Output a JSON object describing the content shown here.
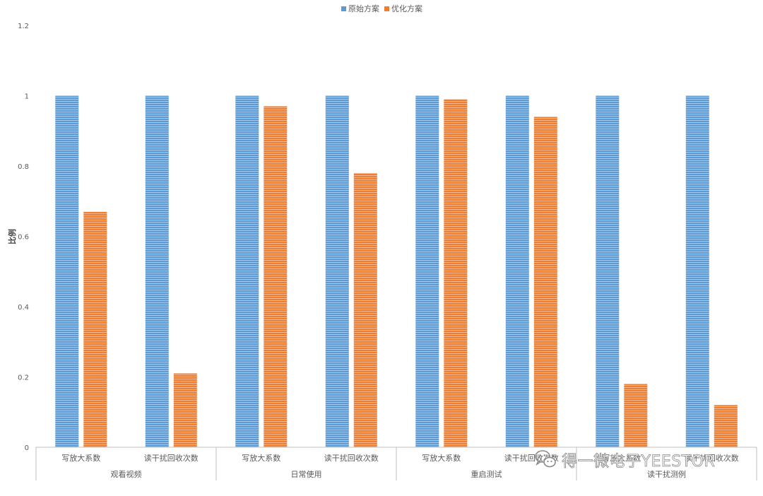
{
  "chart_data": {
    "type": "bar",
    "title": "",
    "xlabel": "",
    "ylabel": "比例",
    "ylim": [
      0,
      1.2
    ],
    "yticks": [
      "0",
      "0.2",
      "0.4",
      "0.6",
      "0.8",
      "1",
      "1.2"
    ],
    "grid": false,
    "legend_position": "top-center",
    "groups": [
      {
        "name": "观看视频",
        "categories": [
          "写放大系数",
          "读干扰回收次数"
        ]
      },
      {
        "name": "日常使用",
        "categories": [
          "写放大系数",
          "读干扰回收次数"
        ]
      },
      {
        "name": "重启测试",
        "categories": [
          "写放大系数",
          "读干扰回收次数"
        ]
      },
      {
        "name": "读干扰测例",
        "categories": [
          "写放大系数",
          "读干扰回收次数"
        ]
      }
    ],
    "series": [
      {
        "name": "原始方案",
        "color": "#5b9bd5",
        "values": [
          1,
          1,
          1,
          1,
          1,
          1,
          1,
          1
        ]
      },
      {
        "name": "优化方案",
        "color": "#ed7d31",
        "values": [
          0.67,
          0.21,
          0.97,
          0.78,
          0.99,
          0.94,
          0.18,
          0.12
        ]
      }
    ]
  },
  "watermark": {
    "text": "得一微电子YEESTOR",
    "icon": "wechat-icon"
  }
}
